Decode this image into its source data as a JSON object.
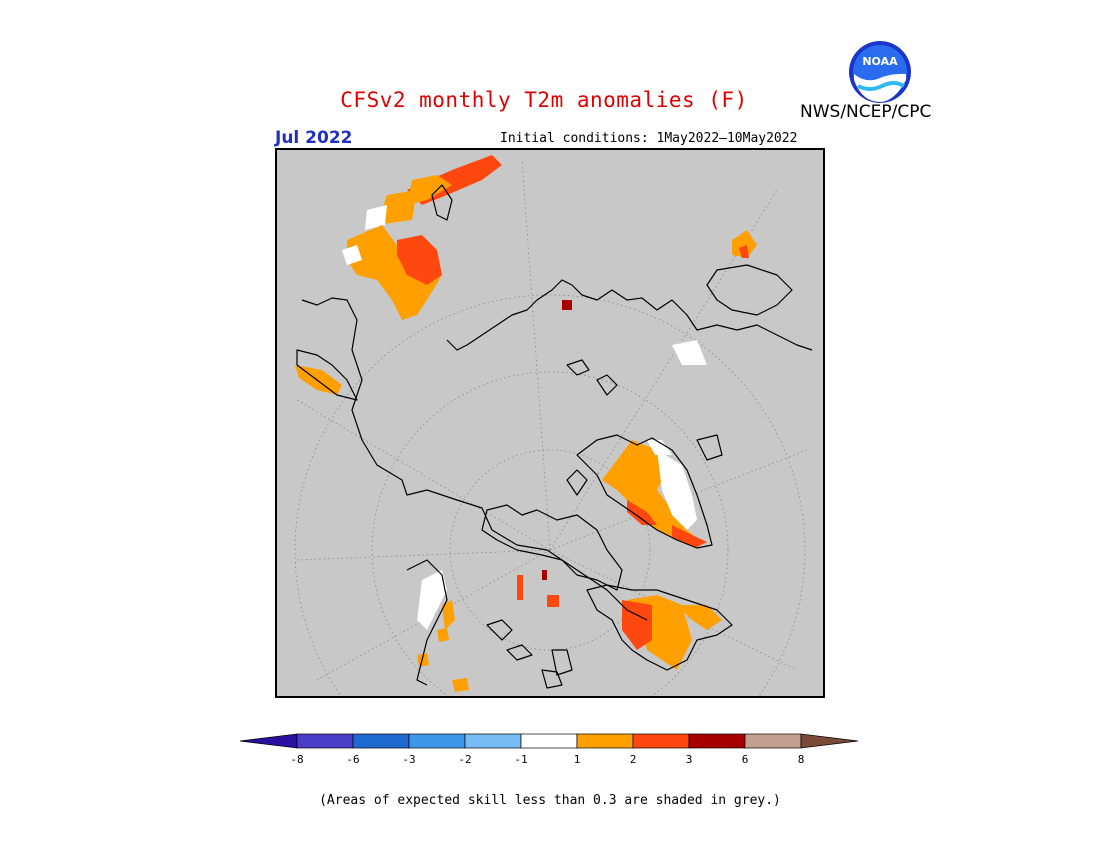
{
  "header": {
    "title": "CFSv2 monthly T2m anomalies (F)",
    "agency": "NWS/NCEP/CPC",
    "month": "Jul 2022",
    "initial_conditions": "Initial conditions: 1May2022—10May2022"
  },
  "logo": {
    "icon": "noaa-logo",
    "text": "NOAA"
  },
  "map": {
    "projection": "north-polar-stereographic",
    "background_color": "#c8c8c8",
    "graticule": "dotted"
  },
  "colorbar": {
    "colors": [
      "#2a10a0",
      "#4a3ec8",
      "#1f6ad0",
      "#3e96ea",
      "#78bcf5",
      "#ffffff",
      "#ffa000",
      "#ff4810",
      "#a80000",
      "#c4a090",
      "#7a4a38"
    ],
    "ticks": [
      "-8",
      "-6",
      "-3",
      "-2",
      "-1",
      "1",
      "2",
      "3",
      "6",
      "8"
    ]
  },
  "note": "(Areas of expected skill less than 0.3 are shaded in grey.)"
}
